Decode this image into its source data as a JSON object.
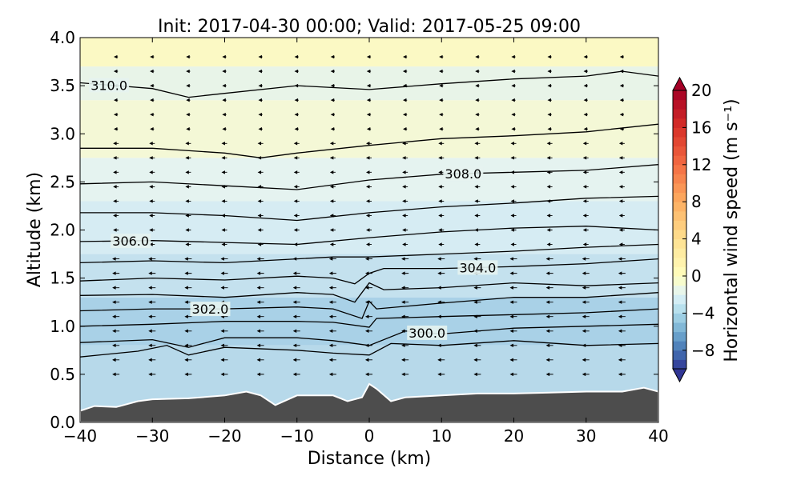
{
  "chart_data": {
    "type": "contour-cross-section",
    "title": "Init: 2017-04-30 00:00; Valid: 2017-05-25 09:00",
    "xlabel": "Distance (km)",
    "ylabel": "Altitude (km)",
    "xlim": [
      -40,
      40
    ],
    "ylim": [
      0.0,
      4.0
    ],
    "x_ticks": [
      -40,
      -30,
      -20,
      -10,
      0,
      10,
      20,
      30,
      40
    ],
    "x_tick_labels": [
      "−40",
      "−30",
      "−20",
      "−10",
      "0",
      "10",
      "20",
      "30",
      "40"
    ],
    "y_ticks": [
      0.0,
      0.5,
      1.0,
      1.5,
      2.0,
      2.5,
      3.0,
      3.5,
      4.0
    ],
    "y_tick_labels": [
      "0.0",
      "0.5",
      "1.0",
      "1.5",
      "2.0",
      "2.5",
      "3.0",
      "3.5",
      "4.0"
    ],
    "colorbar": {
      "label": "Horizontal wind speed (m s⁻¹)",
      "range": [
        -10,
        20
      ],
      "ticks": [
        -8,
        -4,
        0,
        4,
        8,
        12,
        16,
        20
      ],
      "tick_labels": [
        "−8",
        "−4",
        "0",
        "4",
        "8",
        "12",
        "16",
        "20"
      ],
      "extend": "both",
      "colors": [
        "#313695",
        "#4575b4",
        "#74add1",
        "#abd9e9",
        "#e0f3f8",
        "#ffffbf",
        "#fee090",
        "#fdae61",
        "#f46d43",
        "#d73027",
        "#a50026"
      ]
    },
    "fill_bands": [
      {
        "y": [
          0.0,
          0.8
        ],
        "value": -4,
        "color": "#b7d9ea"
      },
      {
        "y": [
          0.8,
          1.3
        ],
        "value": -3.5,
        "color": "#a9d1e7"
      },
      {
        "y": [
          1.3,
          1.75
        ],
        "value": -2.5,
        "color": "#c4e1ee"
      },
      {
        "y": [
          1.75,
          2.3
        ],
        "value": -1.5,
        "color": "#d6ecf3"
      },
      {
        "y": [
          2.3,
          2.75
        ],
        "value": -0.5,
        "color": "#e5f3f0"
      },
      {
        "y": [
          2.75,
          3.35
        ],
        "value": 0.5,
        "color": "#f4f8d6"
      },
      {
        "y": [
          3.35,
          3.7
        ],
        "value": -0.5,
        "color": "#e8f4e8"
      },
      {
        "y": [
          3.7,
          4.0
        ],
        "value": 1,
        "color": "#fbf9c4"
      }
    ],
    "contour_levels": [
      {
        "label": "310.0",
        "label_x": -36,
        "x": [
          -40,
          -30,
          -25,
          -20,
          -10,
          0,
          10,
          20,
          30,
          35,
          40
        ],
        "y": [
          3.53,
          3.47,
          3.38,
          3.42,
          3.5,
          3.46,
          3.52,
          3.57,
          3.6,
          3.65,
          3.6
        ]
      },
      {
        "label": "",
        "label_x": null,
        "x": [
          -40,
          -30,
          -20,
          -15,
          -10,
          0,
          10,
          20,
          30,
          40
        ],
        "y": [
          2.85,
          2.85,
          2.8,
          2.75,
          2.8,
          2.88,
          2.95,
          2.98,
          3.02,
          3.1
        ]
      },
      {
        "label": "308.0",
        "label_x": 13,
        "x": [
          -40,
          -30,
          -20,
          -10,
          0,
          10,
          20,
          30,
          40
        ],
        "y": [
          2.48,
          2.5,
          2.46,
          2.42,
          2.52,
          2.58,
          2.6,
          2.62,
          2.68
        ]
      },
      {
        "label": "",
        "label_x": null,
        "x": [
          -40,
          -30,
          -20,
          -10,
          0,
          10,
          20,
          30,
          40
        ],
        "y": [
          2.18,
          2.18,
          2.15,
          2.1,
          2.18,
          2.24,
          2.28,
          2.33,
          2.35
        ]
      },
      {
        "label": "306.0",
        "label_x": -33,
        "x": [
          -40,
          -30,
          -20,
          -10,
          0,
          10,
          20,
          30,
          40
        ],
        "y": [
          1.88,
          1.89,
          1.87,
          1.85,
          1.92,
          1.98,
          2.02,
          2.04,
          2.0
        ]
      },
      {
        "label": "",
        "label_x": null,
        "x": [
          -40,
          -30,
          -20,
          -10,
          -5,
          0,
          10,
          20,
          30,
          40
        ],
        "y": [
          1.66,
          1.68,
          1.66,
          1.7,
          1.72,
          1.72,
          1.75,
          1.78,
          1.82,
          1.85
        ]
      },
      {
        "label": "304.0",
        "label_x": 15,
        "x": [
          -40,
          -30,
          -20,
          -10,
          -5,
          -2,
          0,
          2,
          10,
          20,
          30,
          40
        ],
        "y": [
          1.47,
          1.5,
          1.48,
          1.52,
          1.5,
          1.44,
          1.55,
          1.6,
          1.6,
          1.62,
          1.65,
          1.7
        ]
      },
      {
        "label": "",
        "label_x": null,
        "x": [
          -40,
          -30,
          -20,
          -10,
          -5,
          -2,
          0,
          2,
          10,
          20,
          30,
          40
        ],
        "y": [
          1.32,
          1.33,
          1.3,
          1.35,
          1.33,
          1.25,
          1.45,
          1.38,
          1.4,
          1.45,
          1.42,
          1.45
        ]
      },
      {
        "label": "302.0",
        "label_x": -22,
        "x": [
          -40,
          -30,
          -20,
          -10,
          -5,
          -1,
          0,
          1,
          10,
          20,
          30,
          40
        ],
        "y": [
          1.16,
          1.18,
          1.18,
          1.2,
          1.18,
          1.08,
          1.26,
          1.18,
          1.24,
          1.3,
          1.3,
          1.35
        ]
      },
      {
        "label": "",
        "label_x": null,
        "x": [
          -40,
          -30,
          -20,
          -10,
          -5,
          0,
          1,
          10,
          20,
          30,
          40
        ],
        "y": [
          1.0,
          1.02,
          1.05,
          1.05,
          1.04,
          0.99,
          1.08,
          1.1,
          1.12,
          1.14,
          1.18
        ]
      },
      {
        "label": "300.0",
        "label_x": 8,
        "x": [
          -40,
          -30,
          -25,
          -20,
          -10,
          -5,
          0,
          5,
          10,
          20,
          30,
          40
        ],
        "y": [
          0.83,
          0.86,
          0.78,
          0.88,
          0.88,
          0.85,
          0.8,
          0.95,
          0.92,
          0.98,
          1.0,
          1.02
        ]
      },
      {
        "label": "",
        "label_x": null,
        "x": [
          -40,
          -32,
          -28,
          -25,
          -20,
          -10,
          -5,
          0,
          3,
          10,
          20,
          30,
          40
        ],
        "y": [
          0.68,
          0.74,
          0.8,
          0.7,
          0.78,
          0.75,
          0.72,
          0.7,
          0.82,
          0.8,
          0.85,
          0.8,
          0.82
        ]
      }
    ],
    "terrain": {
      "x": [
        -40,
        -38,
        -35,
        -32,
        -30,
        -25,
        -20,
        -17,
        -15,
        -13,
        -10,
        -8,
        -5,
        -3,
        -1,
        0,
        1,
        3,
        5,
        10,
        15,
        20,
        25,
        30,
        35,
        38,
        40
      ],
      "y": [
        0.12,
        0.17,
        0.16,
        0.22,
        0.24,
        0.25,
        0.28,
        0.32,
        0.28,
        0.18,
        0.28,
        0.28,
        0.28,
        0.22,
        0.26,
        0.4,
        0.35,
        0.22,
        0.26,
        0.28,
        0.3,
        0.3,
        0.31,
        0.32,
        0.32,
        0.36,
        0.32
      ],
      "color": "#4d4d4d"
    }
  }
}
